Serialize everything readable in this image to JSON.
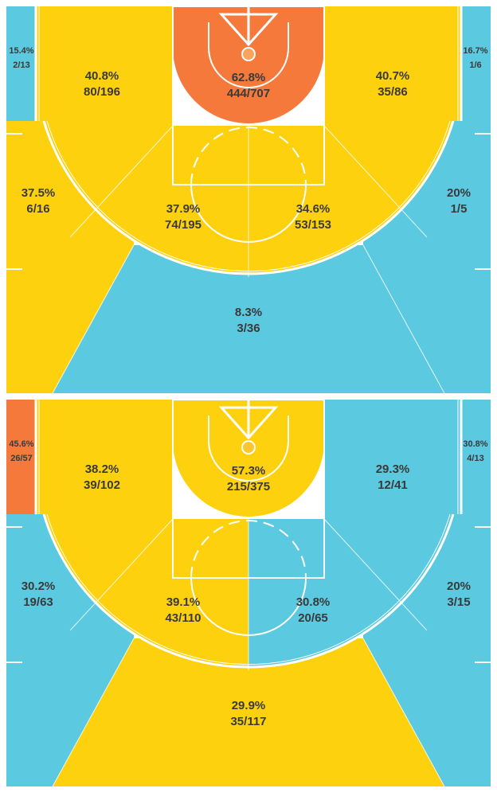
{
  "courts": [
    {
      "zones": [
        {
          "pct": "15.4%",
          "frac": "2/13",
          "color": "#5bc9df"
        },
        {
          "pct": "16.7%",
          "frac": "1/6",
          "color": "#5bc9df"
        },
        {
          "pct": "62.8%",
          "frac": "444/707",
          "color": "#f5793b"
        },
        {
          "pct": "40.8%",
          "frac": "80/196",
          "color": "#fdd10d"
        },
        {
          "pct": "40.7%",
          "frac": "35/86",
          "color": "#fdd10d"
        },
        {
          "pct": "37.9%",
          "frac": "74/195",
          "color": "#fdd10d"
        },
        {
          "pct": "34.6%",
          "frac": "53/153",
          "color": "#fdd10d"
        },
        {
          "pct": "37.5%",
          "frac": "6/16",
          "color": "#fdd10d"
        },
        {
          "pct": "20%",
          "frac": "1/5",
          "color": "#5bc9df"
        },
        {
          "pct": "8.3%",
          "frac": "3/36",
          "color": "#5bc9df"
        }
      ]
    },
    {
      "zones": [
        {
          "pct": "45.6%",
          "frac": "26/57",
          "color": "#f5793b"
        },
        {
          "pct": "30.8%",
          "frac": "4/13",
          "color": "#5bc9df"
        },
        {
          "pct": "57.3%",
          "frac": "215/375",
          "color": "#fdd10d"
        },
        {
          "pct": "38.2%",
          "frac": "39/102",
          "color": "#fdd10d"
        },
        {
          "pct": "29.3%",
          "frac": "12/41",
          "color": "#5bc9df"
        },
        {
          "pct": "39.1%",
          "frac": "43/110",
          "color": "#fdd10d"
        },
        {
          "pct": "30.8%",
          "frac": "20/65",
          "color": "#5bc9df"
        },
        {
          "pct": "30.2%",
          "frac": "19/63",
          "color": "#5bc9df"
        },
        {
          "pct": "20%",
          "frac": "3/15",
          "color": "#5bc9df"
        },
        {
          "pct": "29.9%",
          "frac": "35/117",
          "color": "#fdd10d"
        }
      ]
    }
  ]
}
